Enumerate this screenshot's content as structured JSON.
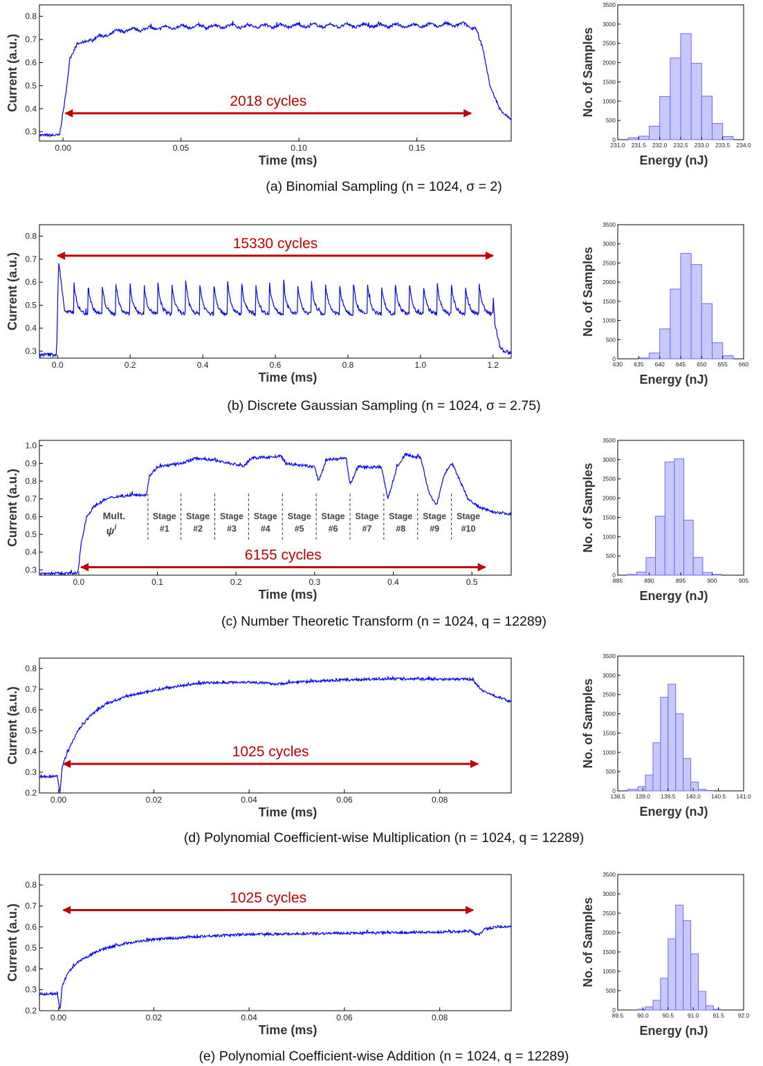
{
  "colors": {
    "trace": "#0000ff",
    "arrow": "#c00000",
    "hist_fill": "#c8c8ff",
    "hist_edge": "#6a6af0"
  },
  "common": {
    "trace_xlabel": "Time (ms)",
    "trace_ylabel": "Current (a.u.)",
    "hist_xlabel": "Energy (nJ)",
    "hist_ylabel": "No. of Samples",
    "hist_yticks": [
      "0",
      "500",
      "1000",
      "1500",
      "2000",
      "2500",
      "3000",
      "3500"
    ]
  },
  "chart_data": [
    {
      "id": "a",
      "caption": "(a) Binomial Sampling (n = 1024, σ = 2)",
      "trace": {
        "type": "line",
        "xlim": [
          -0.01,
          0.19
        ],
        "ylim": [
          0.26,
          0.85
        ],
        "xticks": [
          "0.00",
          "0.05",
          "0.10",
          "0.15"
        ],
        "yticks": [
          "0.3",
          "0.4",
          "0.5",
          "0.6",
          "0.7",
          "0.8"
        ],
        "series_points": [
          [
            -0.01,
            0.285
          ],
          [
            -0.0015,
            0.285
          ],
          [
            0.001,
            0.45
          ],
          [
            0.003,
            0.62
          ],
          [
            0.006,
            0.68
          ],
          [
            0.012,
            0.7
          ],
          [
            0.025,
            0.74
          ],
          [
            0.05,
            0.755
          ],
          [
            0.1,
            0.76
          ],
          [
            0.15,
            0.76
          ],
          [
            0.17,
            0.765
          ],
          [
            0.175,
            0.75
          ],
          [
            0.178,
            0.66
          ],
          [
            0.181,
            0.5
          ],
          [
            0.185,
            0.4
          ],
          [
            0.19,
            0.35
          ]
        ],
        "ripple": {
          "amp": 0.016,
          "period": 0.007,
          "from": 0.012,
          "to": 0.174
        },
        "noise": 0.006,
        "arrow": {
          "x_from": 0.001,
          "x_to": 0.173,
          "y": 0.38,
          "label": "2018 cycles"
        }
      },
      "histogram": {
        "type": "bar",
        "xlim": [
          231.0,
          234.0
        ],
        "xticks": [
          "231.0",
          "231.5",
          "232.0",
          "232.5",
          "233.0",
          "233.5",
          "234.0"
        ],
        "bin_edges": [
          231.25,
          231.5,
          231.75,
          232.0,
          232.25,
          232.5,
          232.75,
          233.0,
          233.25,
          233.5,
          233.75
        ],
        "counts": [
          50,
          90,
          350,
          1120,
          2120,
          2750,
          1980,
          1130,
          420,
          80
        ]
      }
    },
    {
      "id": "b",
      "caption": "(b) Discrete Gaussian Sampling (n = 1024, σ = 2.75)",
      "trace": {
        "type": "line",
        "xlim": [
          -0.05,
          1.25
        ],
        "ylim": [
          0.27,
          0.85
        ],
        "xticks": [
          "0.0",
          "0.2",
          "0.4",
          "0.6",
          "0.8",
          "1.0",
          "1.2"
        ],
        "yticks": [
          "0.3",
          "0.4",
          "0.5",
          "0.6",
          "0.7",
          "0.8"
        ],
        "series_points": [
          [
            -0.05,
            0.285
          ],
          [
            -0.003,
            0.285
          ],
          [
            0.003,
            0.69
          ],
          [
            0.02,
            0.47
          ],
          [
            1.19,
            0.46
          ],
          [
            1.198,
            0.6
          ],
          [
            1.205,
            0.42
          ],
          [
            1.22,
            0.31
          ],
          [
            1.25,
            0.29
          ]
        ],
        "spikes": {
          "start": 0.045,
          "period": 0.0385,
          "count": 30,
          "peak": 0.6,
          "base": 0.46,
          "decay": 0.009
        },
        "noise": 0.008,
        "arrow": {
          "x_from": 0.0,
          "x_to": 1.2,
          "y": 0.715,
          "label": "15330 cycles"
        }
      },
      "histogram": {
        "type": "bar",
        "xlim": [
          630,
          660
        ],
        "xticks": [
          "630",
          "635",
          "640",
          "645",
          "650",
          "655",
          "660"
        ],
        "bin_edges": [
          635,
          637.5,
          640,
          642.5,
          645,
          647.5,
          650,
          652.5,
          655,
          657.5
        ],
        "counts": [
          20,
          150,
          780,
          1820,
          2750,
          2460,
          1440,
          420,
          80
        ]
      }
    },
    {
      "id": "c",
      "caption": "(c) Number Theoretic Transform (n = 1024, q = 12289)",
      "trace": {
        "type": "line",
        "xlim": [
          -0.05,
          0.55
        ],
        "ylim": [
          0.27,
          1.03
        ],
        "xticks": [
          "0.0",
          "0.1",
          "0.2",
          "0.3",
          "0.4",
          "0.5"
        ],
        "yticks": [
          "0.3",
          "0.4",
          "0.5",
          "0.6",
          "0.7",
          "0.8",
          "0.9",
          "1.0"
        ],
        "series_points": [
          [
            -0.05,
            0.28
          ],
          [
            -0.001,
            0.28
          ],
          [
            0.003,
            0.45
          ],
          [
            0.01,
            0.6
          ],
          [
            0.02,
            0.66
          ],
          [
            0.035,
            0.7
          ],
          [
            0.05,
            0.715
          ],
          [
            0.086,
            0.725
          ],
          [
            0.09,
            0.83
          ],
          [
            0.1,
            0.88
          ],
          [
            0.13,
            0.9
          ],
          [
            0.15,
            0.93
          ],
          [
            0.17,
            0.92
          ],
          [
            0.21,
            0.885
          ],
          [
            0.22,
            0.93
          ],
          [
            0.258,
            0.94
          ],
          [
            0.262,
            0.9
          ],
          [
            0.3,
            0.88
          ],
          [
            0.305,
            0.8
          ],
          [
            0.315,
            0.92
          ],
          [
            0.34,
            0.93
          ],
          [
            0.345,
            0.78
          ],
          [
            0.355,
            0.88
          ],
          [
            0.385,
            0.88
          ],
          [
            0.393,
            0.7
          ],
          [
            0.405,
            0.88
          ],
          [
            0.415,
            0.95
          ],
          [
            0.435,
            0.93
          ],
          [
            0.445,
            0.74
          ],
          [
            0.455,
            0.66
          ],
          [
            0.465,
            0.84
          ],
          [
            0.475,
            0.9
          ],
          [
            0.48,
            0.85
          ],
          [
            0.495,
            0.7
          ],
          [
            0.51,
            0.65
          ],
          [
            0.53,
            0.625
          ],
          [
            0.55,
            0.615
          ]
        ],
        "noise": 0.008,
        "stage_lines": [
          0.088,
          0.13,
          0.173,
          0.216,
          0.259,
          0.302,
          0.345,
          0.388,
          0.431,
          0.474,
          0.517
        ],
        "mult_label": "Mult.",
        "mult_symbol": "ψ",
        "mult_sup": "i",
        "stage_word": "Stage",
        "stage_numbers": [
          "#1",
          "#2",
          "#3",
          "#4",
          "#5",
          "#6",
          "#7",
          "#8",
          "#9",
          "#10"
        ],
        "arrow": {
          "x_from": 0.003,
          "x_to": 0.517,
          "y": 0.315,
          "label": "6155 cycles"
        }
      },
      "histogram": {
        "type": "bar",
        "xlim": [
          885,
          905
        ],
        "xticks": [
          "885",
          "890",
          "895",
          "900",
          "905"
        ],
        "bin_edges": [
          886.5,
          888,
          889.5,
          891,
          892.5,
          894,
          895.5,
          897,
          898.5,
          900,
          901.5
        ],
        "counts": [
          20,
          80,
          460,
          1530,
          2940,
          3020,
          1430,
          460,
          70,
          20
        ]
      }
    },
    {
      "id": "d",
      "caption": "(d) Polynomial Coefficient-wise Multiplication (n = 1024, q = 12289)",
      "trace": {
        "type": "line",
        "xlim": [
          -0.004,
          0.095
        ],
        "ylim": [
          0.2,
          0.85
        ],
        "xticks": [
          "0.00",
          "0.02",
          "0.04",
          "0.06",
          "0.08"
        ],
        "yticks": [
          "0.2",
          "0.3",
          "0.4",
          "0.5",
          "0.6",
          "0.7",
          "0.8"
        ],
        "series_points": [
          [
            -0.004,
            0.28
          ],
          [
            -0.0002,
            0.28
          ],
          [
            0.0003,
            0.2
          ],
          [
            0.0008,
            0.33
          ],
          [
            0.002,
            0.4
          ],
          [
            0.004,
            0.5
          ],
          [
            0.007,
            0.58
          ],
          [
            0.01,
            0.63
          ],
          [
            0.015,
            0.67
          ],
          [
            0.02,
            0.695
          ],
          [
            0.025,
            0.715
          ],
          [
            0.03,
            0.73
          ],
          [
            0.04,
            0.735
          ],
          [
            0.046,
            0.725
          ],
          [
            0.05,
            0.735
          ],
          [
            0.06,
            0.745
          ],
          [
            0.07,
            0.75
          ],
          [
            0.087,
            0.748
          ],
          [
            0.0875,
            0.73
          ],
          [
            0.089,
            0.69
          ],
          [
            0.092,
            0.665
          ],
          [
            0.095,
            0.64
          ]
        ],
        "noise": 0.006,
        "arrow": {
          "x_from": 0.001,
          "x_to": 0.088,
          "y": 0.34,
          "label": "1025 cycles"
        }
      },
      "histogram": {
        "type": "bar",
        "xlim": [
          138.5,
          141.0
        ],
        "xticks": [
          "138.5",
          "139.0",
          "139.5",
          "140.0",
          "140.5",
          "141.0"
        ],
        "bin_edges": [
          138.7,
          138.9,
          139.05,
          139.2,
          139.35,
          139.5,
          139.65,
          139.8,
          139.95,
          140.1,
          140.25,
          140.4
        ],
        "counts": [
          40,
          110,
          410,
          1250,
          2430,
          2770,
          2000,
          840,
          230,
          40,
          10
        ]
      }
    },
    {
      "id": "e",
      "caption": "(e) Polynomial Coefficient-wise Addition (n = 1024, q = 12289)",
      "trace": {
        "type": "line",
        "xlim": [
          -0.004,
          0.095
        ],
        "ylim": [
          0.2,
          0.85
        ],
        "xticks": [
          "0.00",
          "0.02",
          "0.04",
          "0.06",
          "0.08"
        ],
        "yticks": [
          "0.2",
          "0.3",
          "0.4",
          "0.5",
          "0.6",
          "0.7",
          "0.8"
        ],
        "series_points": [
          [
            -0.004,
            0.28
          ],
          [
            -0.0002,
            0.28
          ],
          [
            0.0003,
            0.2
          ],
          [
            0.0008,
            0.32
          ],
          [
            0.002,
            0.38
          ],
          [
            0.004,
            0.43
          ],
          [
            0.007,
            0.47
          ],
          [
            0.01,
            0.5
          ],
          [
            0.015,
            0.525
          ],
          [
            0.02,
            0.54
          ],
          [
            0.03,
            0.555
          ],
          [
            0.04,
            0.565
          ],
          [
            0.06,
            0.57
          ],
          [
            0.08,
            0.575
          ],
          [
            0.0865,
            0.58
          ],
          [
            0.088,
            0.56
          ],
          [
            0.0895,
            0.59
          ],
          [
            0.092,
            0.6
          ],
          [
            0.095,
            0.6
          ]
        ],
        "noise": 0.006,
        "arrow": {
          "x_from": 0.001,
          "x_to": 0.087,
          "y": 0.68,
          "label": "1025 cycles"
        }
      },
      "histogram": {
        "type": "bar",
        "xlim": [
          89.5,
          92.0
        ],
        "xticks": [
          "89.5",
          "90.0",
          "90.5",
          "91.0",
          "91.5",
          "92.0"
        ],
        "bin_edges": [
          89.9,
          90.05,
          90.2,
          90.35,
          90.5,
          90.65,
          90.8,
          90.95,
          91.1,
          91.25,
          91.4,
          91.55
        ],
        "counts": [
          20,
          80,
          250,
          820,
          1840,
          2710,
          2310,
          1450,
          480,
          110,
          20
        ]
      }
    }
  ]
}
